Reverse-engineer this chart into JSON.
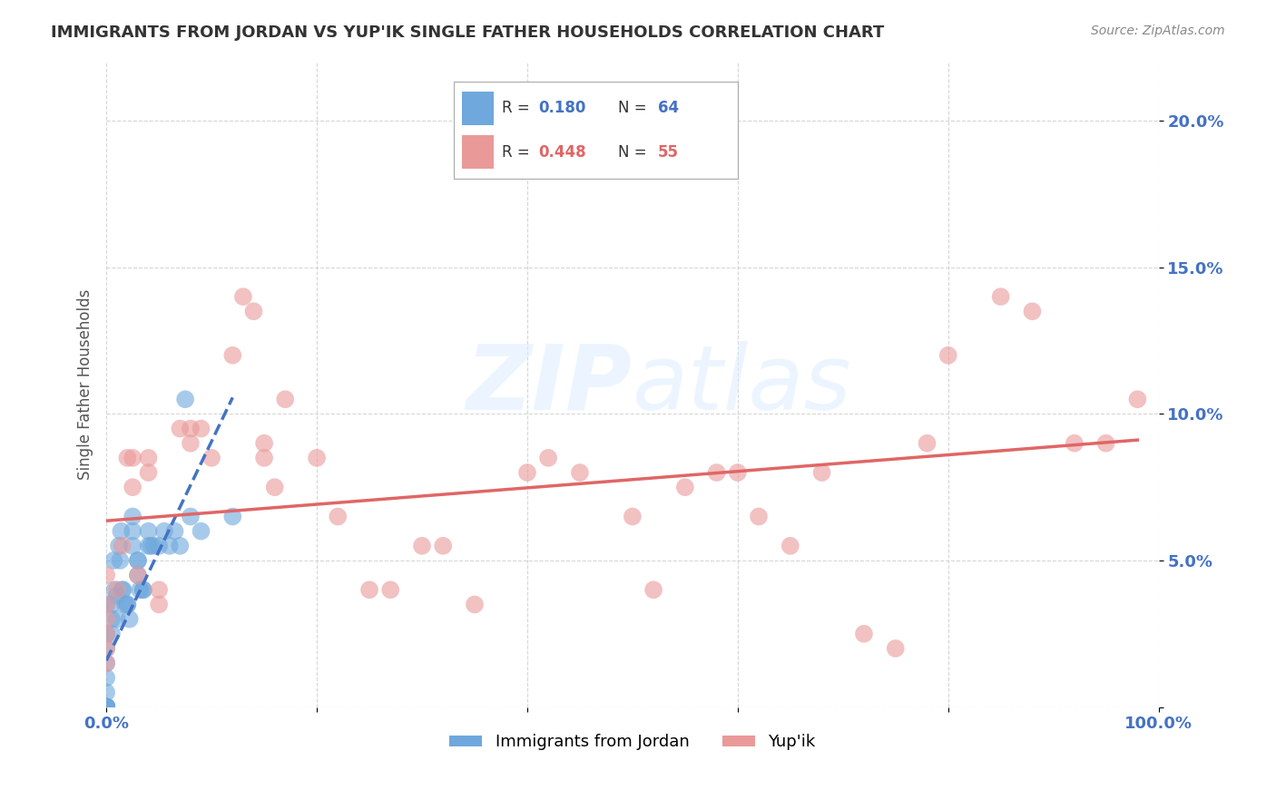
{
  "title": "IMMIGRANTS FROM JORDAN VS YUP'IK SINGLE FATHER HOUSEHOLDS CORRELATION CHART",
  "source": "Source: ZipAtlas.com",
  "tick_color": "#4472C4",
  "ylabel": "Single Father Households",
  "xlim": [
    0,
    1.0
  ],
  "ylim": [
    0,
    0.22
  ],
  "jordan_color": "#6FA8DC",
  "yupik_color": "#EA9999",
  "jordan_trend_color": "#4472C4",
  "yupik_trend_color": "#E06666",
  "background_color": "#FFFFFF",
  "jordan_x": [
    0.0,
    0.0,
    0.0,
    0.0,
    0.0,
    0.0,
    0.0,
    0.0,
    0.0,
    0.0,
    0.0,
    0.0,
    0.0,
    0.0,
    0.0,
    0.0,
    0.0,
    0.0,
    0.0,
    0.0,
    0.0,
    0.0,
    0.0,
    0.0,
    0.0,
    0.0,
    0.005,
    0.005,
    0.005,
    0.007,
    0.008,
    0.01,
    0.01,
    0.012,
    0.013,
    0.014,
    0.015,
    0.016,
    0.018,
    0.02,
    0.02,
    0.022,
    0.025,
    0.025,
    0.025,
    0.03,
    0.03,
    0.03,
    0.032,
    0.035,
    0.035,
    0.04,
    0.04,
    0.042,
    0.045,
    0.05,
    0.055,
    0.06,
    0.065,
    0.07,
    0.075,
    0.08,
    0.09,
    0.12
  ],
  "jordan_y": [
    0.035,
    0.025,
    0.02,
    0.015,
    0.01,
    0.005,
    0.0,
    0.0,
    0.0,
    0.0,
    0.0,
    0.0,
    0.0,
    0.0,
    0.0,
    0.0,
    0.0,
    0.0,
    0.0,
    0.0,
    0.0,
    0.0,
    0.0,
    0.0,
    0.0,
    0.0,
    0.035,
    0.03,
    0.025,
    0.05,
    0.04,
    0.038,
    0.03,
    0.055,
    0.05,
    0.06,
    0.04,
    0.04,
    0.035,
    0.035,
    0.035,
    0.03,
    0.065,
    0.06,
    0.055,
    0.05,
    0.05,
    0.045,
    0.04,
    0.04,
    0.04,
    0.06,
    0.055,
    0.055,
    0.055,
    0.055,
    0.06,
    0.055,
    0.06,
    0.055,
    0.105,
    0.065,
    0.06,
    0.065
  ],
  "yupik_x": [
    0.0,
    0.0,
    0.0,
    0.0,
    0.0,
    0.0,
    0.01,
    0.015,
    0.02,
    0.025,
    0.025,
    0.03,
    0.04,
    0.04,
    0.05,
    0.05,
    0.07,
    0.08,
    0.08,
    0.09,
    0.1,
    0.12,
    0.13,
    0.14,
    0.15,
    0.15,
    0.16,
    0.17,
    0.2,
    0.22,
    0.25,
    0.27,
    0.3,
    0.32,
    0.35,
    0.4,
    0.42,
    0.45,
    0.5,
    0.52,
    0.55,
    0.58,
    0.6,
    0.62,
    0.65,
    0.68,
    0.72,
    0.75,
    0.78,
    0.8,
    0.85,
    0.88,
    0.92,
    0.95,
    0.98
  ],
  "yupik_y": [
    0.045,
    0.035,
    0.03,
    0.025,
    0.02,
    0.015,
    0.04,
    0.055,
    0.085,
    0.085,
    0.075,
    0.045,
    0.085,
    0.08,
    0.04,
    0.035,
    0.095,
    0.095,
    0.09,
    0.095,
    0.085,
    0.12,
    0.14,
    0.135,
    0.09,
    0.085,
    0.075,
    0.105,
    0.085,
    0.065,
    0.04,
    0.04,
    0.055,
    0.055,
    0.035,
    0.08,
    0.085,
    0.08,
    0.065,
    0.04,
    0.075,
    0.08,
    0.08,
    0.065,
    0.055,
    0.08,
    0.025,
    0.02,
    0.09,
    0.12,
    0.14,
    0.135,
    0.09,
    0.09,
    0.105
  ]
}
